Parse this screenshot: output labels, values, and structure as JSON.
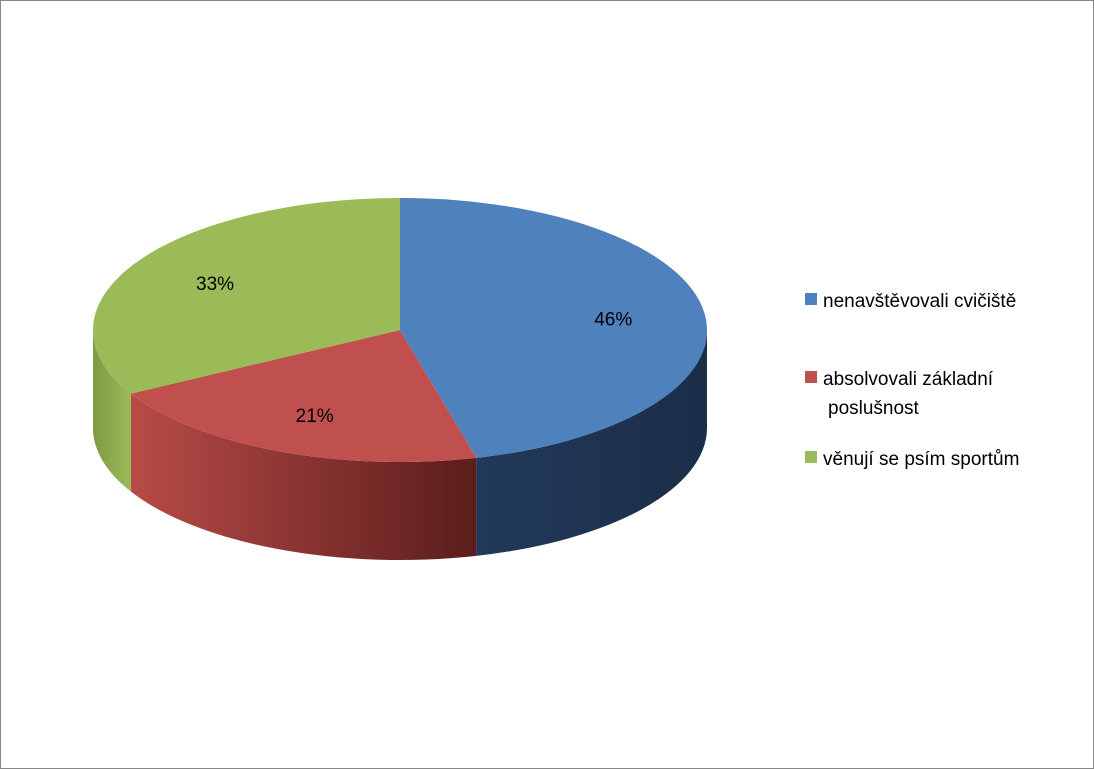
{
  "chart_data": {
    "type": "pie",
    "title": "",
    "style": "3d",
    "legend_position": "right",
    "slices": [
      {
        "label": "nenavštěvovali cvičiště",
        "value": 46,
        "value_label": "46%",
        "color": "#4F81BD",
        "side_color": "#1F3550"
      },
      {
        "label": "absolvovali základní poslušnost",
        "legend_lines": [
          "absolvovali základní",
          "poslušnost"
        ],
        "value": 21,
        "value_label": "21%",
        "color": "#C0504D",
        "side_color": "#6E2523"
      },
      {
        "label": "věnují se psím sportům",
        "value": 33,
        "value_label": "33%",
        "color": "#9BBB59",
        "side_color": "#6E8A3A"
      }
    ]
  }
}
